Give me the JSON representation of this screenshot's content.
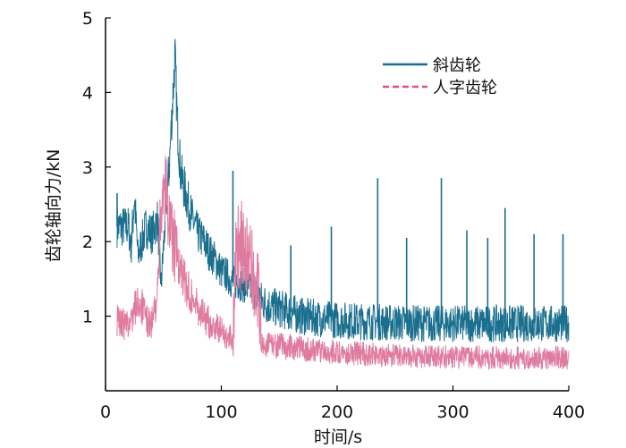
{
  "chart_data": {
    "type": "line",
    "title": "",
    "xlabel": "时间/s",
    "ylabel": "齿轮轴向力/kN",
    "xlim": [
      0,
      400
    ],
    "ylim": [
      0,
      5
    ],
    "x_ticks": [
      "0",
      "100",
      "200",
      "300",
      "400"
    ],
    "y_ticks": [
      "1",
      "2",
      "3",
      "4",
      "5"
    ],
    "grid": false,
    "legend_position": "top-right",
    "series": [
      {
        "name": "斜齿轮",
        "color": "#1a6e8e",
        "line_style": "solid",
        "x": [
          10,
          15,
          20,
          22,
          25,
          28,
          35,
          40,
          45,
          48,
          52,
          55,
          58,
          60,
          62,
          65,
          70,
          75,
          80,
          85,
          90,
          95,
          100,
          105,
          110,
          115,
          120,
          125,
          130,
          135,
          140,
          150,
          160,
          170,
          180,
          200,
          220,
          240,
          260,
          280,
          300,
          320,
          340,
          360,
          380,
          400
        ],
        "y": [
          2.2,
          2.2,
          2.2,
          1.9,
          2.6,
          1.8,
          2.2,
          2.1,
          2.3,
          1.4,
          2.4,
          3.0,
          3.9,
          4.5,
          3.6,
          2.9,
          2.6,
          2.3,
          2.1,
          2.0,
          1.85,
          1.75,
          1.6,
          1.55,
          1.45,
          1.45,
          1.4,
          1.35,
          1.3,
          1.2,
          1.15,
          1.1,
          1.05,
          1.0,
          0.98,
          0.95,
          0.93,
          0.92,
          0.91,
          0.9,
          0.9,
          0.9,
          0.9,
          0.9,
          0.9,
          0.9
        ],
        "spikes": [
          {
            "x": 10,
            "y": 2.65
          },
          {
            "x": 55,
            "y": 3.05
          },
          {
            "x": 110,
            "y": 2.95
          },
          {
            "x": 160,
            "y": 1.95
          },
          {
            "x": 195,
            "y": 2.2
          },
          {
            "x": 235,
            "y": 2.85
          },
          {
            "x": 260,
            "y": 2.05
          },
          {
            "x": 290,
            "y": 2.85
          },
          {
            "x": 312,
            "y": 2.15
          },
          {
            "x": 330,
            "y": 2.05
          },
          {
            "x": 345,
            "y": 2.45
          },
          {
            "x": 370,
            "y": 2.1
          },
          {
            "x": 395,
            "y": 2.1
          }
        ]
      },
      {
        "name": "人字齿轮",
        "color": "#e07ba0",
        "line_style": "dashed",
        "x": [
          10,
          15,
          20,
          25,
          30,
          35,
          40,
          45,
          48,
          50,
          53,
          55,
          60,
          65,
          70,
          75,
          80,
          85,
          90,
          95,
          100,
          105,
          110,
          113,
          118,
          122,
          128,
          132,
          135,
          140,
          150,
          160,
          180,
          200,
          220,
          240,
          260,
          280,
          300,
          320,
          340,
          360,
          380,
          400
        ],
        "y": [
          0.95,
          0.9,
          0.85,
          1.1,
          1.2,
          0.95,
          0.9,
          1.3,
          2.5,
          2.85,
          2.6,
          2.3,
          1.9,
          1.6,
          1.4,
          1.25,
          1.1,
          1.0,
          0.9,
          0.85,
          0.8,
          0.75,
          0.7,
          2.05,
          1.9,
          1.75,
          1.55,
          1.3,
          0.65,
          0.62,
          0.6,
          0.58,
          0.55,
          0.52,
          0.5,
          0.48,
          0.47,
          0.46,
          0.45,
          0.45,
          0.44,
          0.44,
          0.44,
          0.44
        ]
      }
    ]
  }
}
